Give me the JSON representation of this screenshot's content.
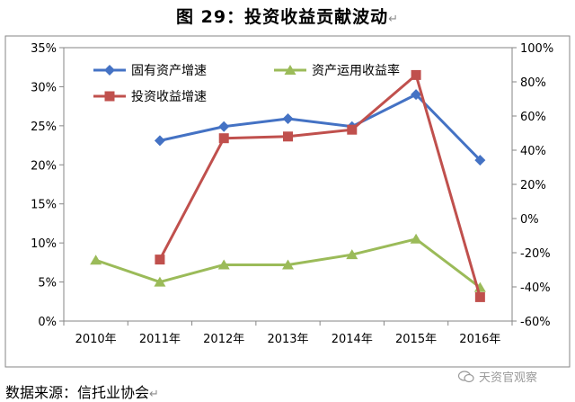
{
  "title": "图 29：投资收益贡献波动",
  "title_mark": "↵",
  "source": "数据来源：信托业协会",
  "source_mark": "↵",
  "watermark": "天资官观察",
  "colors": {
    "asset_growth": "#4472C4",
    "return_rate": "#9BBB59",
    "income_growth": "#C0504D",
    "axis": "#868686",
    "grid": "#D9D9D9"
  },
  "chart_data": {
    "type": "line",
    "title": "",
    "categories": [
      "2010年",
      "2011年",
      "2012年",
      "2013年",
      "2014年",
      "2015年",
      "2016年"
    ],
    "y_left": {
      "min": 0,
      "max": 0.35,
      "step": 0.05,
      "ticks": [
        "0%",
        "5%",
        "10%",
        "15%",
        "20%",
        "25%",
        "30%",
        "35%"
      ]
    },
    "y_right": {
      "min": -0.6,
      "max": 1.0,
      "step": 0.2,
      "ticks": [
        "-60%",
        "-40%",
        "-20%",
        "0%",
        "20%",
        "40%",
        "60%",
        "80%",
        "100%"
      ]
    },
    "grid": false,
    "legend_position": "top-left inside",
    "series": [
      {
        "name": "固有资产增速",
        "axis": "left",
        "marker": "diamond",
        "color_key": "asset_growth",
        "values": [
          null,
          0.231,
          0.249,
          0.259,
          0.249,
          0.29,
          0.206
        ]
      },
      {
        "name": "资产运用收益率",
        "axis": "left",
        "marker": "triangle",
        "color_key": "return_rate",
        "values": [
          0.078,
          0.05,
          0.072,
          0.072,
          0.085,
          0.105,
          0.043
        ]
      },
      {
        "name": "投资收益增速",
        "axis": "right",
        "marker": "square",
        "color_key": "income_growth",
        "values": [
          null,
          -0.24,
          0.47,
          0.48,
          0.52,
          0.84,
          -0.46
        ]
      }
    ]
  }
}
